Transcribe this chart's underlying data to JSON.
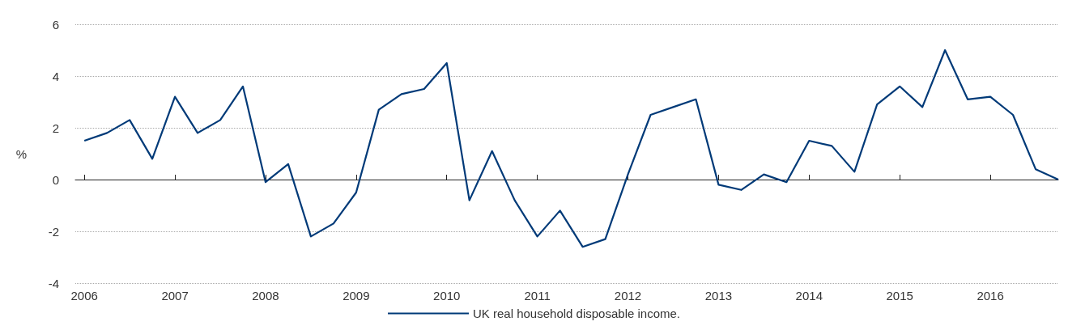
{
  "chart_data": {
    "type": "line",
    "ylabel": "%",
    "xlim": [
      2005.9,
      2016.75
    ],
    "xticks": [
      2006,
      2007,
      2008,
      2009,
      2010,
      2011,
      2012,
      2013,
      2014,
      2015,
      2016
    ],
    "ylim": [
      -4,
      6
    ],
    "yticks": [
      -4,
      -2,
      0,
      2,
      4,
      6
    ],
    "grid": "y",
    "legend": "bottom",
    "marker": "none",
    "line_style": "solid",
    "x": [
      2006,
      2006.25,
      2006.5,
      2006.75,
      2007,
      2007.25,
      2007.5,
      2007.75,
      2008,
      2008.25,
      2008.5,
      2008.75,
      2009,
      2009.25,
      2009.5,
      2009.75,
      2010,
      2010.25,
      2010.5,
      2010.75,
      2011,
      2011.25,
      2011.5,
      2011.75,
      2012,
      2012.25,
      2012.5,
      2012.75,
      2013,
      2013.25,
      2013.5,
      2013.75,
      2014,
      2014.25,
      2014.5,
      2014.75,
      2015,
      2015.25,
      2015.5,
      2015.75,
      2016,
      2016.25,
      2016.5,
      2016.75
    ],
    "series": [
      {
        "name": "UK real household disposable income.",
        "color": "#003a78",
        "values": [
          1.5,
          1.8,
          2.3,
          0.8,
          3.2,
          1.8,
          2.3,
          3.6,
          -0.1,
          0.6,
          -2.2,
          -1.7,
          -0.5,
          2.7,
          3.3,
          3.5,
          4.5,
          -0.8,
          1.1,
          -0.8,
          -2.2,
          -1.2,
          -2.6,
          -2.3,
          0.2,
          2.5,
          2.8,
          3.1,
          -0.2,
          -0.4,
          0.2,
          -0.1,
          1.5,
          1.3,
          0.3,
          2.9,
          3.6,
          2.8,
          5.0,
          3.1,
          3.2,
          2.5,
          0.4,
          0.0
        ]
      }
    ]
  }
}
